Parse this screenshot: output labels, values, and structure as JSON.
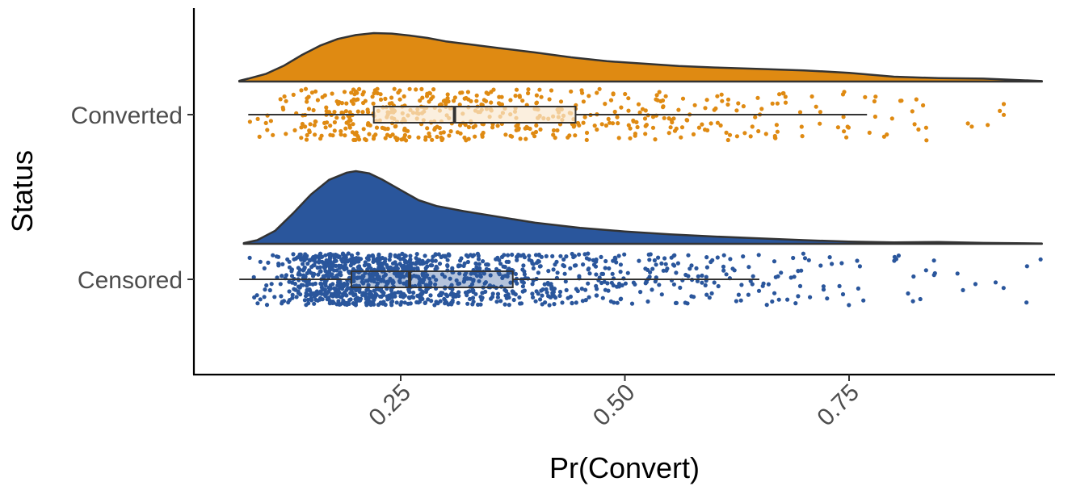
{
  "chart_data": {
    "type": "raincloud",
    "title": "",
    "xlabel": "Pr(Convert)",
    "ylabel": "Status",
    "xlim": [
      0.04,
      0.98
    ],
    "x_ticks": [
      0.25,
      0.5,
      0.75
    ],
    "x_tick_labels": [
      "0.25",
      "0.50",
      "0.75"
    ],
    "x_tick_rotation_deg": 45,
    "grid": false,
    "legend": "none",
    "categories": [
      "Converted",
      "Censored"
    ],
    "series": [
      {
        "name": "Converted",
        "color": "#df8a12",
        "box_fill": "#f9e8d0",
        "box": {
          "whisker_low": 0.08,
          "q1": 0.22,
          "median": 0.31,
          "q3": 0.445,
          "whisker_high": 0.77
        },
        "point_range": [
          0.08,
          0.975
        ],
        "point_count": 560,
        "density": [
          [
            0.07,
            0.015
          ],
          [
            0.08,
            0.06
          ],
          [
            0.1,
            0.16
          ],
          [
            0.12,
            0.33
          ],
          [
            0.14,
            0.55
          ],
          [
            0.16,
            0.74
          ],
          [
            0.18,
            0.88
          ],
          [
            0.2,
            0.96
          ],
          [
            0.22,
            1.0
          ],
          [
            0.24,
            0.99
          ],
          [
            0.26,
            0.95
          ],
          [
            0.28,
            0.9
          ],
          [
            0.3,
            0.83
          ],
          [
            0.33,
            0.76
          ],
          [
            0.36,
            0.69
          ],
          [
            0.4,
            0.6
          ],
          [
            0.44,
            0.5
          ],
          [
            0.48,
            0.42
          ],
          [
            0.52,
            0.37
          ],
          [
            0.56,
            0.32
          ],
          [
            0.6,
            0.29
          ],
          [
            0.65,
            0.26
          ],
          [
            0.7,
            0.23
          ],
          [
            0.75,
            0.18
          ],
          [
            0.8,
            0.1
          ],
          [
            0.85,
            0.07
          ],
          [
            0.9,
            0.06
          ],
          [
            0.94,
            0.03
          ],
          [
            0.965,
            0.01
          ]
        ]
      },
      {
        "name": "Censored",
        "color": "#2a569c",
        "box_fill": "#2a569c",
        "box": {
          "whisker_low": 0.07,
          "q1": 0.195,
          "median": 0.26,
          "q3": 0.375,
          "whisker_high": 0.65
        },
        "point_range": [
          0.07,
          0.975
        ],
        "point_count": 1300,
        "density": [
          [
            0.075,
            0.01
          ],
          [
            0.09,
            0.05
          ],
          [
            0.11,
            0.18
          ],
          [
            0.13,
            0.42
          ],
          [
            0.15,
            0.68
          ],
          [
            0.17,
            0.88
          ],
          [
            0.19,
            0.98
          ],
          [
            0.2,
            1.0
          ],
          [
            0.215,
            0.97
          ],
          [
            0.23,
            0.88
          ],
          [
            0.25,
            0.74
          ],
          [
            0.27,
            0.6
          ],
          [
            0.29,
            0.52
          ],
          [
            0.32,
            0.45
          ],
          [
            0.36,
            0.37
          ],
          [
            0.4,
            0.29
          ],
          [
            0.45,
            0.22
          ],
          [
            0.5,
            0.17
          ],
          [
            0.55,
            0.13
          ],
          [
            0.6,
            0.1
          ],
          [
            0.65,
            0.075
          ],
          [
            0.7,
            0.05
          ],
          [
            0.75,
            0.03
          ],
          [
            0.8,
            0.02
          ],
          [
            0.85,
            0.025
          ],
          [
            0.9,
            0.012
          ],
          [
            0.965,
            0.004
          ]
        ]
      }
    ]
  }
}
